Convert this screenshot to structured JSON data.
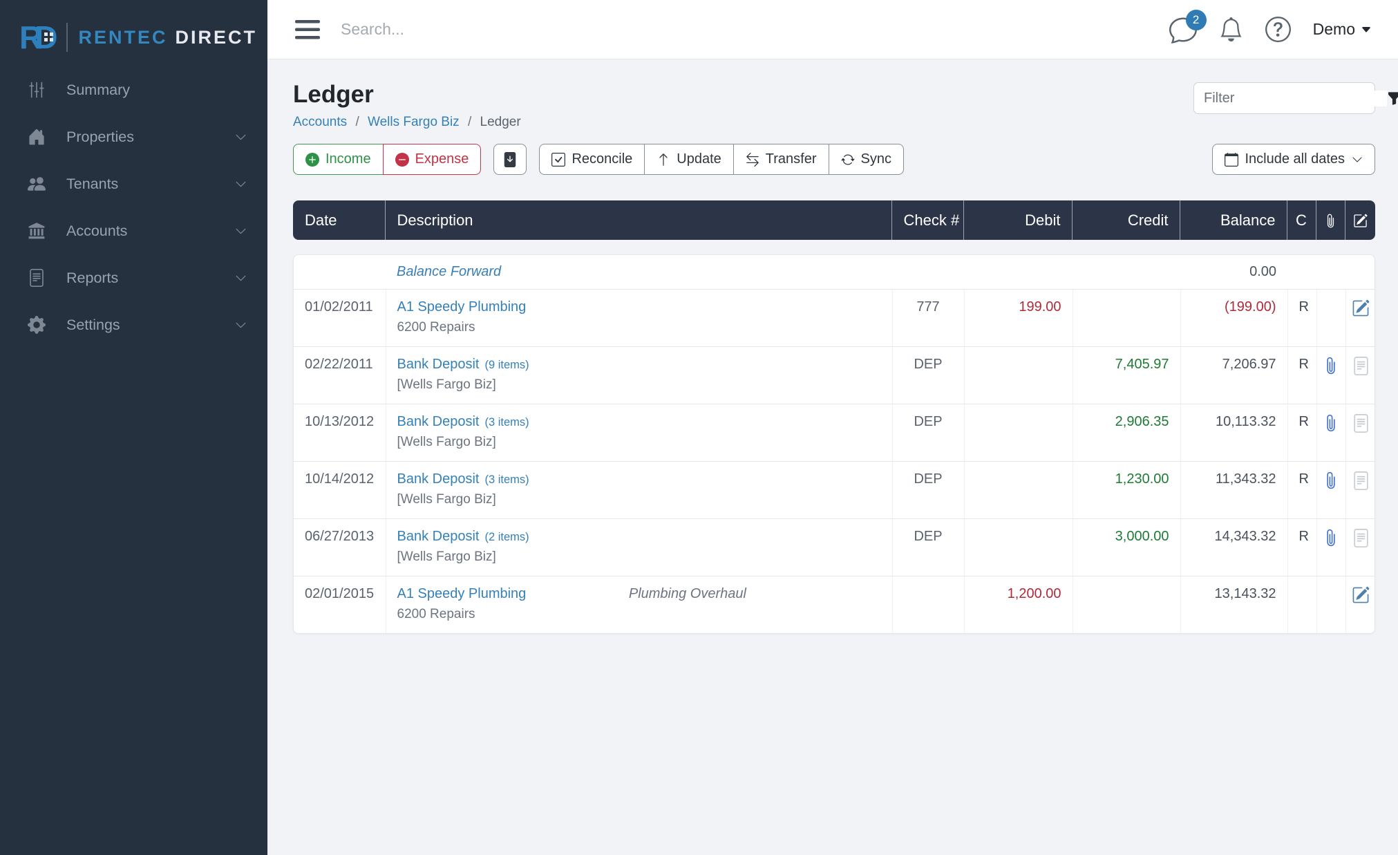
{
  "brand": {
    "mark_r": "R",
    "mark_d": "D",
    "name_primary": "RENTEC",
    "name_secondary": "DIRECT"
  },
  "topbar": {
    "search_placeholder": "Search...",
    "notifications_count": "2",
    "user_menu_label": "Demo"
  },
  "sidebar": {
    "items": [
      {
        "label": "Summary",
        "icon": "sliders-icon",
        "expandable": false
      },
      {
        "label": "Properties",
        "icon": "home-icon",
        "expandable": true
      },
      {
        "label": "Tenants",
        "icon": "people-icon",
        "expandable": true
      },
      {
        "label": "Accounts",
        "icon": "bank-icon",
        "expandable": true
      },
      {
        "label": "Reports",
        "icon": "document-icon",
        "expandable": true
      },
      {
        "label": "Settings",
        "icon": "gear-icon",
        "expandable": true
      }
    ]
  },
  "page": {
    "title": "Ledger",
    "breadcrumb_sep": "/",
    "breadcrumb": [
      {
        "label": "Accounts",
        "link": true
      },
      {
        "label": "Wells Fargo Biz",
        "link": true
      },
      {
        "label": "Ledger",
        "link": false
      }
    ]
  },
  "toolbar": {
    "income": "Income",
    "expense": "Expense",
    "reconcile": "Reconcile",
    "update": "Update",
    "transfer": "Transfer",
    "sync": "Sync",
    "filter_placeholder": "Filter",
    "date_range": "Include all dates"
  },
  "table": {
    "headers": {
      "date": "Date",
      "description": "Description",
      "check": "Check #",
      "debit": "Debit",
      "credit": "Credit",
      "balance": "Balance",
      "cleared": "C"
    },
    "balance_forward": {
      "label": "Balance Forward",
      "balance": "0.00"
    },
    "rows": [
      {
        "date": "01/02/2011",
        "payee": "A1 Speedy Plumbing",
        "items": "",
        "memo": "",
        "subtext": "6200 Repairs",
        "check": "777",
        "debit": "199.00",
        "credit": "",
        "balance": "(199.00)",
        "balance_negative": true,
        "cleared": "R",
        "attachment": false,
        "action": "edit"
      },
      {
        "date": "02/22/2011",
        "payee": "Bank Deposit",
        "items": "(9 items)",
        "memo": "",
        "subtext": "[Wells Fargo Biz]",
        "check": "DEP",
        "debit": "",
        "credit": "7,405.97",
        "balance": "7,206.97",
        "balance_negative": false,
        "cleared": "R",
        "attachment": true,
        "action": "note"
      },
      {
        "date": "10/13/2012",
        "payee": "Bank Deposit",
        "items": "(3 items)",
        "memo": "",
        "subtext": "[Wells Fargo Biz]",
        "check": "DEP",
        "debit": "",
        "credit": "2,906.35",
        "balance": "10,113.32",
        "balance_negative": false,
        "cleared": "R",
        "attachment": true,
        "action": "note"
      },
      {
        "date": "10/14/2012",
        "payee": "Bank Deposit",
        "items": "(3 items)",
        "memo": "",
        "subtext": "[Wells Fargo Biz]",
        "check": "DEP",
        "debit": "",
        "credit": "1,230.00",
        "balance": "11,343.32",
        "balance_negative": false,
        "cleared": "R",
        "attachment": true,
        "action": "note"
      },
      {
        "date": "06/27/2013",
        "payee": "Bank Deposit",
        "items": "(2 items)",
        "memo": "",
        "subtext": "[Wells Fargo Biz]",
        "check": "DEP",
        "debit": "",
        "credit": "3,000.00",
        "balance": "14,343.32",
        "balance_negative": false,
        "cleared": "R",
        "attachment": true,
        "action": "note"
      },
      {
        "date": "02/01/2015",
        "payee": "A1 Speedy Plumbing",
        "items": "",
        "memo": "Plumbing Overhaul",
        "subtext": "6200 Repairs",
        "check": "",
        "debit": "1,200.00",
        "credit": "",
        "balance": "13,143.32",
        "balance_negative": false,
        "cleared": "",
        "attachment": false,
        "action": "edit"
      }
    ]
  },
  "colors": {
    "sidebar_navy": "#263140",
    "header_navy": "#2c3547",
    "brand_blue": "#2d80bd",
    "link_blue": "#3480b8",
    "income_green": "#2f9147",
    "expense_red": "#c13347",
    "credit_green": "#1e7b34",
    "debit_red": "#b02a37",
    "badge_blue": "#2f7cb5",
    "attachment_blue": "#4270d3",
    "content_bg": "#f1f3f7"
  },
  "icons": {
    "hamburger": "menu bars",
    "search": "text placeholder",
    "chat": "speech bubble",
    "bell": "notifications",
    "help": "question circle",
    "caret": "▾",
    "funnel": "filter",
    "calendar": "date range",
    "plus_circle": "income",
    "dash_circle": "expense",
    "file_arrow_down": "export",
    "check_square": "reconcile",
    "arrow_up": "update",
    "arrow_left_right": "transfer",
    "arrow_repeat": "sync",
    "paperclip": "attachment",
    "file_text": "document",
    "pencil_square": "edit"
  }
}
